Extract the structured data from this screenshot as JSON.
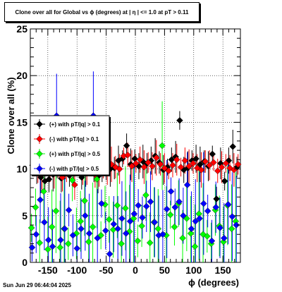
{
  "chart_data": {
    "type": "scatter",
    "title": "Clone  over all for Global vs ϕ (degrees) at |  η  | <= 1.0 at pT > 0.11",
    "xlabel": "ϕ (degrees)",
    "ylabel": "Clone  over all (%)",
    "xlim": [
      -180,
      180
    ],
    "ylim": [
      0,
      25
    ],
    "xticks": [
      "-150",
      "-100",
      "-50",
      "0",
      "50",
      "100",
      "150"
    ],
    "yticks": [
      "0",
      "5",
      "10",
      "15",
      "20",
      "25"
    ],
    "grid": true,
    "legend_position": "left-middle",
    "series": [
      {
        "name": "(+) with pT/|q| > 0.1",
        "color": "#000000",
        "marker": "diamond",
        "x": [
          -176,
          -169,
          -162,
          -155,
          -148,
          -141,
          -134,
          -127,
          -120,
          -113,
          -106,
          -99,
          -92,
          -85,
          -78,
          -71,
          -64,
          -57,
          -50,
          -43,
          -36,
          -29,
          -22,
          -15,
          -8,
          -1,
          6,
          13,
          20,
          27,
          34,
          41,
          48,
          55,
          62,
          69,
          76,
          83,
          90,
          97,
          104,
          111,
          118,
          125,
          132,
          139,
          146,
          153,
          160,
          167,
          174
        ],
        "values": [
          10.4,
          9.7,
          9.1,
          8.7,
          8.9,
          9.4,
          10.1,
          9.0,
          10.8,
          9.3,
          9.7,
          10.2,
          9.1,
          9.8,
          10.6,
          10.0,
          9.2,
          9.7,
          10.3,
          10.0,
          10.1,
          10.9,
          11.1,
          12.5,
          10.5,
          11.1,
          10.3,
          10.8,
          10.6,
          10.9,
          11.4,
          10.7,
          9.9,
          10.2,
          11.0,
          11.3,
          15.2,
          9.9,
          10.1,
          10.9,
          11.1,
          10.5,
          10.8,
          10.3,
          11.6,
          6.8,
          10.6,
          8.7,
          10.9,
          12.4,
          10.2
        ]
      },
      {
        "name": "(-) with pT/|q| > 0.1",
        "color": "#ff0000",
        "marker": "diamond",
        "x": [
          -174,
          -167,
          -160,
          -153,
          -146,
          -139,
          -132,
          -125,
          -118,
          -111,
          -104,
          -97,
          -90,
          -83,
          -76,
          -69,
          -62,
          -55,
          -48,
          -41,
          -34,
          -27,
          -20,
          -13,
          -6,
          1,
          8,
          15,
          22,
          29,
          36,
          43,
          50,
          57,
          64,
          71,
          78,
          85,
          92,
          99,
          106,
          113,
          120,
          127,
          134,
          141,
          148,
          155,
          162,
          169,
          176
        ],
        "values": [
          10.1,
          9.8,
          9.5,
          10.3,
          10.0,
          9.7,
          10.2,
          9.1,
          10.5,
          9.9,
          8.3,
          10.4,
          9.6,
          10.0,
          10.7,
          9.4,
          9.9,
          10.1,
          9.8,
          10.5,
          10.2,
          10.0,
          11.4,
          11.5,
          10.3,
          10.6,
          11.0,
          10.2,
          10.7,
          10.3,
          11.2,
          10.5,
          10.1,
          9.8,
          10.4,
          11.0,
          10.2,
          10.9,
          10.3,
          10.6,
          10.1,
          9.9,
          10.8,
          10.4,
          10.7,
          9.8,
          10.2,
          10.6,
          10.1,
          9.9,
          10.5
        ]
      },
      {
        "name": "(+) with pT/|q| > 0.5",
        "color": "#00ff00",
        "marker": "diamond",
        "x": [
          -178,
          -171,
          -164,
          -157,
          -150,
          -143,
          -136,
          -129,
          -122,
          -115,
          -108,
          -101,
          -94,
          -87,
          -80,
          -73,
          -66,
          -59,
          -52,
          -45,
          -38,
          -31,
          -24,
          -17,
          -10,
          -3,
          4,
          11,
          18,
          25,
          32,
          39,
          46,
          53,
          60,
          67,
          74,
          81,
          88,
          95,
          102,
          109,
          116,
          123,
          130,
          137,
          144,
          151,
          158,
          165,
          172
        ],
        "values": [
          3.7,
          5.9,
          2.1,
          7.6,
          1.4,
          3.8,
          5.5,
          1.6,
          3.6,
          2.0,
          8.8,
          3.1,
          4.4,
          6.6,
          2.2,
          3.8,
          8.9,
          2.9,
          6.2,
          4.6,
          3.5,
          6.1,
          2.0,
          5.8,
          3.3,
          4.7,
          2.3,
          3.9,
          7.2,
          2.1,
          4.3,
          3.6,
          12.5,
          2.9,
          5.1,
          3.8,
          6.3,
          2.6,
          4.7,
          3.1,
          1.7,
          5.2,
          3.0,
          2.8,
          2.0,
          5.6,
          3.9,
          2.2,
          6.1,
          3.6,
          4.4
        ]
      },
      {
        "name": "(-) with pT/|q| > 0.5",
        "color": "#0000ff",
        "marker": "diamond",
        "x": [
          -177,
          -170,
          -163,
          -156,
          -149,
          -142,
          -135,
          -128,
          -121,
          -114,
          -107,
          -100,
          -93,
          -86,
          -79,
          -72,
          -65,
          -58,
          -51,
          -44,
          -37,
          -30,
          -23,
          -16,
          -9,
          -2,
          5,
          12,
          19,
          26,
          33,
          40,
          47,
          54,
          61,
          68,
          75,
          82,
          89,
          96,
          103,
          110,
          117,
          124,
          131,
          138,
          145,
          152,
          159,
          166,
          173
        ],
        "values": [
          1.6,
          3.0,
          6.7,
          4.3,
          2.4,
          1.7,
          15.7,
          2.4,
          3.6,
          5.6,
          2.9,
          1.5,
          3.6,
          5.0,
          3.1,
          15.7,
          2.6,
          6.3,
          3.4,
          0.9,
          4.1,
          3.6,
          4.7,
          3.1,
          4.4,
          5.2,
          6.1,
          4.8,
          6.0,
          6.5,
          4.3,
          2.9,
          3.0,
          5.7,
          7.6,
          5.9,
          6.5,
          5.0,
          8.3,
          3.6,
          4.4,
          4.7,
          6.3,
          5.5,
          2.3,
          5.9,
          3.7,
          2.6,
          6.2,
          4.9,
          4.0
        ]
      }
    ]
  },
  "footer": {
    "timestamp": "Sun Jun 29 06:44:04 2025"
  }
}
